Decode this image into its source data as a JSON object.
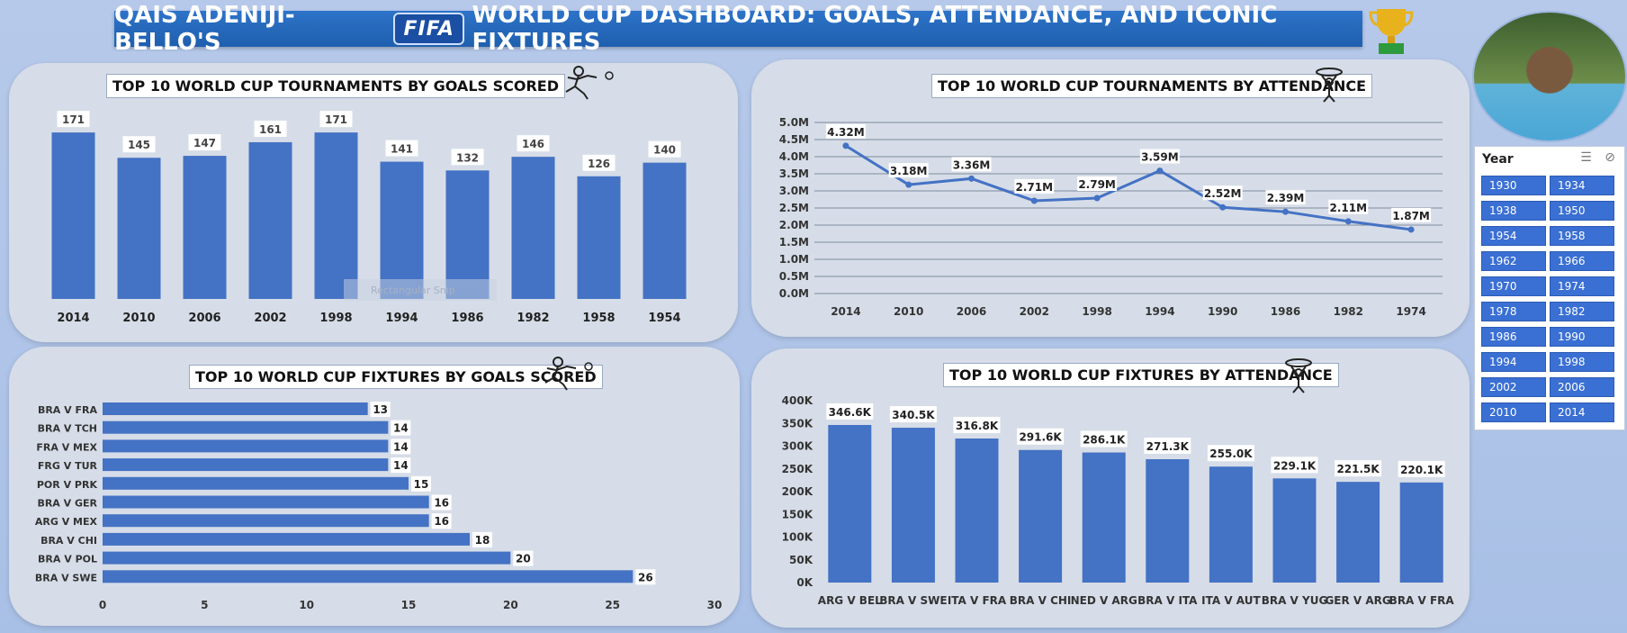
{
  "header": {
    "title_left": "QAIS ADENIJI-BELLO'S",
    "logo_text": "FIFA",
    "title_right": "WORLD CUP DASHBOARD: GOALS, ATTENDANCE, AND ICONIC FIXTURES"
  },
  "icons": {
    "trophy": "trophy-icon",
    "player": "footballer-icon",
    "fans": "crowd-icon",
    "filter": "multi-select-icon",
    "clear_filter": "clear-filter-icon"
  },
  "colors": {
    "bar": "#4472c4",
    "line": "#4472c4",
    "panel": "#d6dde8",
    "title_bar": "#2468be"
  },
  "ghost_label": "Rectangular Snip",
  "slicer": {
    "header": "Year",
    "items": [
      "1930",
      "1934",
      "1938",
      "1950",
      "1954",
      "1958",
      "1962",
      "1966",
      "1970",
      "1974",
      "1978",
      "1982",
      "1986",
      "1990",
      "1994",
      "1998",
      "2002",
      "2006",
      "2010",
      "2014"
    ]
  },
  "chart_data": [
    {
      "type": "bar",
      "title": "TOP 10 WORLD CUP TOURNAMENTS BY GOALS SCORED",
      "categories": [
        "2014",
        "2010",
        "2006",
        "2002",
        "1998",
        "1994",
        "1986",
        "1982",
        "1958",
        "1954"
      ],
      "values": [
        171,
        145,
        147,
        161,
        171,
        141,
        132,
        146,
        126,
        140
      ],
      "value_labels": [
        "171",
        "145",
        "147",
        "161",
        "171",
        "141",
        "132",
        "146",
        "126",
        "140"
      ],
      "ylim": [
        0,
        185
      ]
    },
    {
      "type": "line",
      "title": "TOP 10 WORLD CUP TOURNAMENTS BY ATTENDANCE",
      "categories": [
        "2014",
        "2010",
        "2006",
        "2002",
        "1998",
        "1994",
        "1990",
        "1986",
        "1982",
        "1974"
      ],
      "values": [
        4.32,
        3.18,
        3.36,
        2.71,
        2.79,
        3.59,
        2.52,
        2.39,
        2.11,
        1.87
      ],
      "value_labels": [
        "4.32M",
        "3.18M",
        "3.36M",
        "2.71M",
        "2.79M",
        "3.59M",
        "2.52M",
        "2.39M",
        "2.11M",
        "1.87M"
      ],
      "yticks": [
        "0.0M",
        "0.5M",
        "1.0M",
        "1.5M",
        "2.0M",
        "2.5M",
        "3.0M",
        "3.5M",
        "4.0M",
        "4.5M",
        "5.0M"
      ],
      "ylim": [
        0,
        5
      ]
    },
    {
      "type": "bar",
      "orientation": "horizontal",
      "title": "TOP 10 WORLD CUP FIXTURES BY GOALS  SCORED",
      "categories": [
        "BRA V FRA",
        "BRA V TCH",
        "FRA V MEX",
        "FRG V TUR",
        "POR V PRK",
        "BRA V GER",
        "ARG V MEX",
        "BRA V CHI",
        "BRA V POL",
        "BRA V SWE"
      ],
      "values": [
        13,
        14,
        14,
        14,
        15,
        16,
        16,
        18,
        20,
        26
      ],
      "value_labels": [
        "13",
        "14",
        "14",
        "14",
        "15",
        "16",
        "16",
        "18",
        "20",
        "26"
      ],
      "xticks": [
        "0",
        "5",
        "10",
        "15",
        "20",
        "25",
        "30"
      ],
      "xlim": [
        0,
        30
      ]
    },
    {
      "type": "bar",
      "title": "TOP 10 WORLD CUP FIXTURES BY ATTENDANCE",
      "categories": [
        "ARG V BEL",
        "BRA V SWE",
        "ITA V FRA",
        "BRA V CHI",
        "NED V ARG",
        "BRA V ITA",
        "ITA V AUT",
        "BRA V YUG",
        "GER V ARG",
        "BRA V FRA"
      ],
      "values": [
        346.6,
        340.5,
        316.8,
        291.6,
        286.1,
        271.3,
        255.0,
        229.1,
        221.5,
        220.1
      ],
      "value_labels": [
        "346.6K",
        "340.5K",
        "316.8K",
        "291.6K",
        "286.1K",
        "271.3K",
        "255.0K",
        "229.1K",
        "221.5K",
        "220.1K"
      ],
      "yticks": [
        "0K",
        "50K",
        "100K",
        "150K",
        "200K",
        "250K",
        "300K",
        "350K",
        "400K"
      ],
      "ylim": [
        0,
        400
      ]
    }
  ]
}
